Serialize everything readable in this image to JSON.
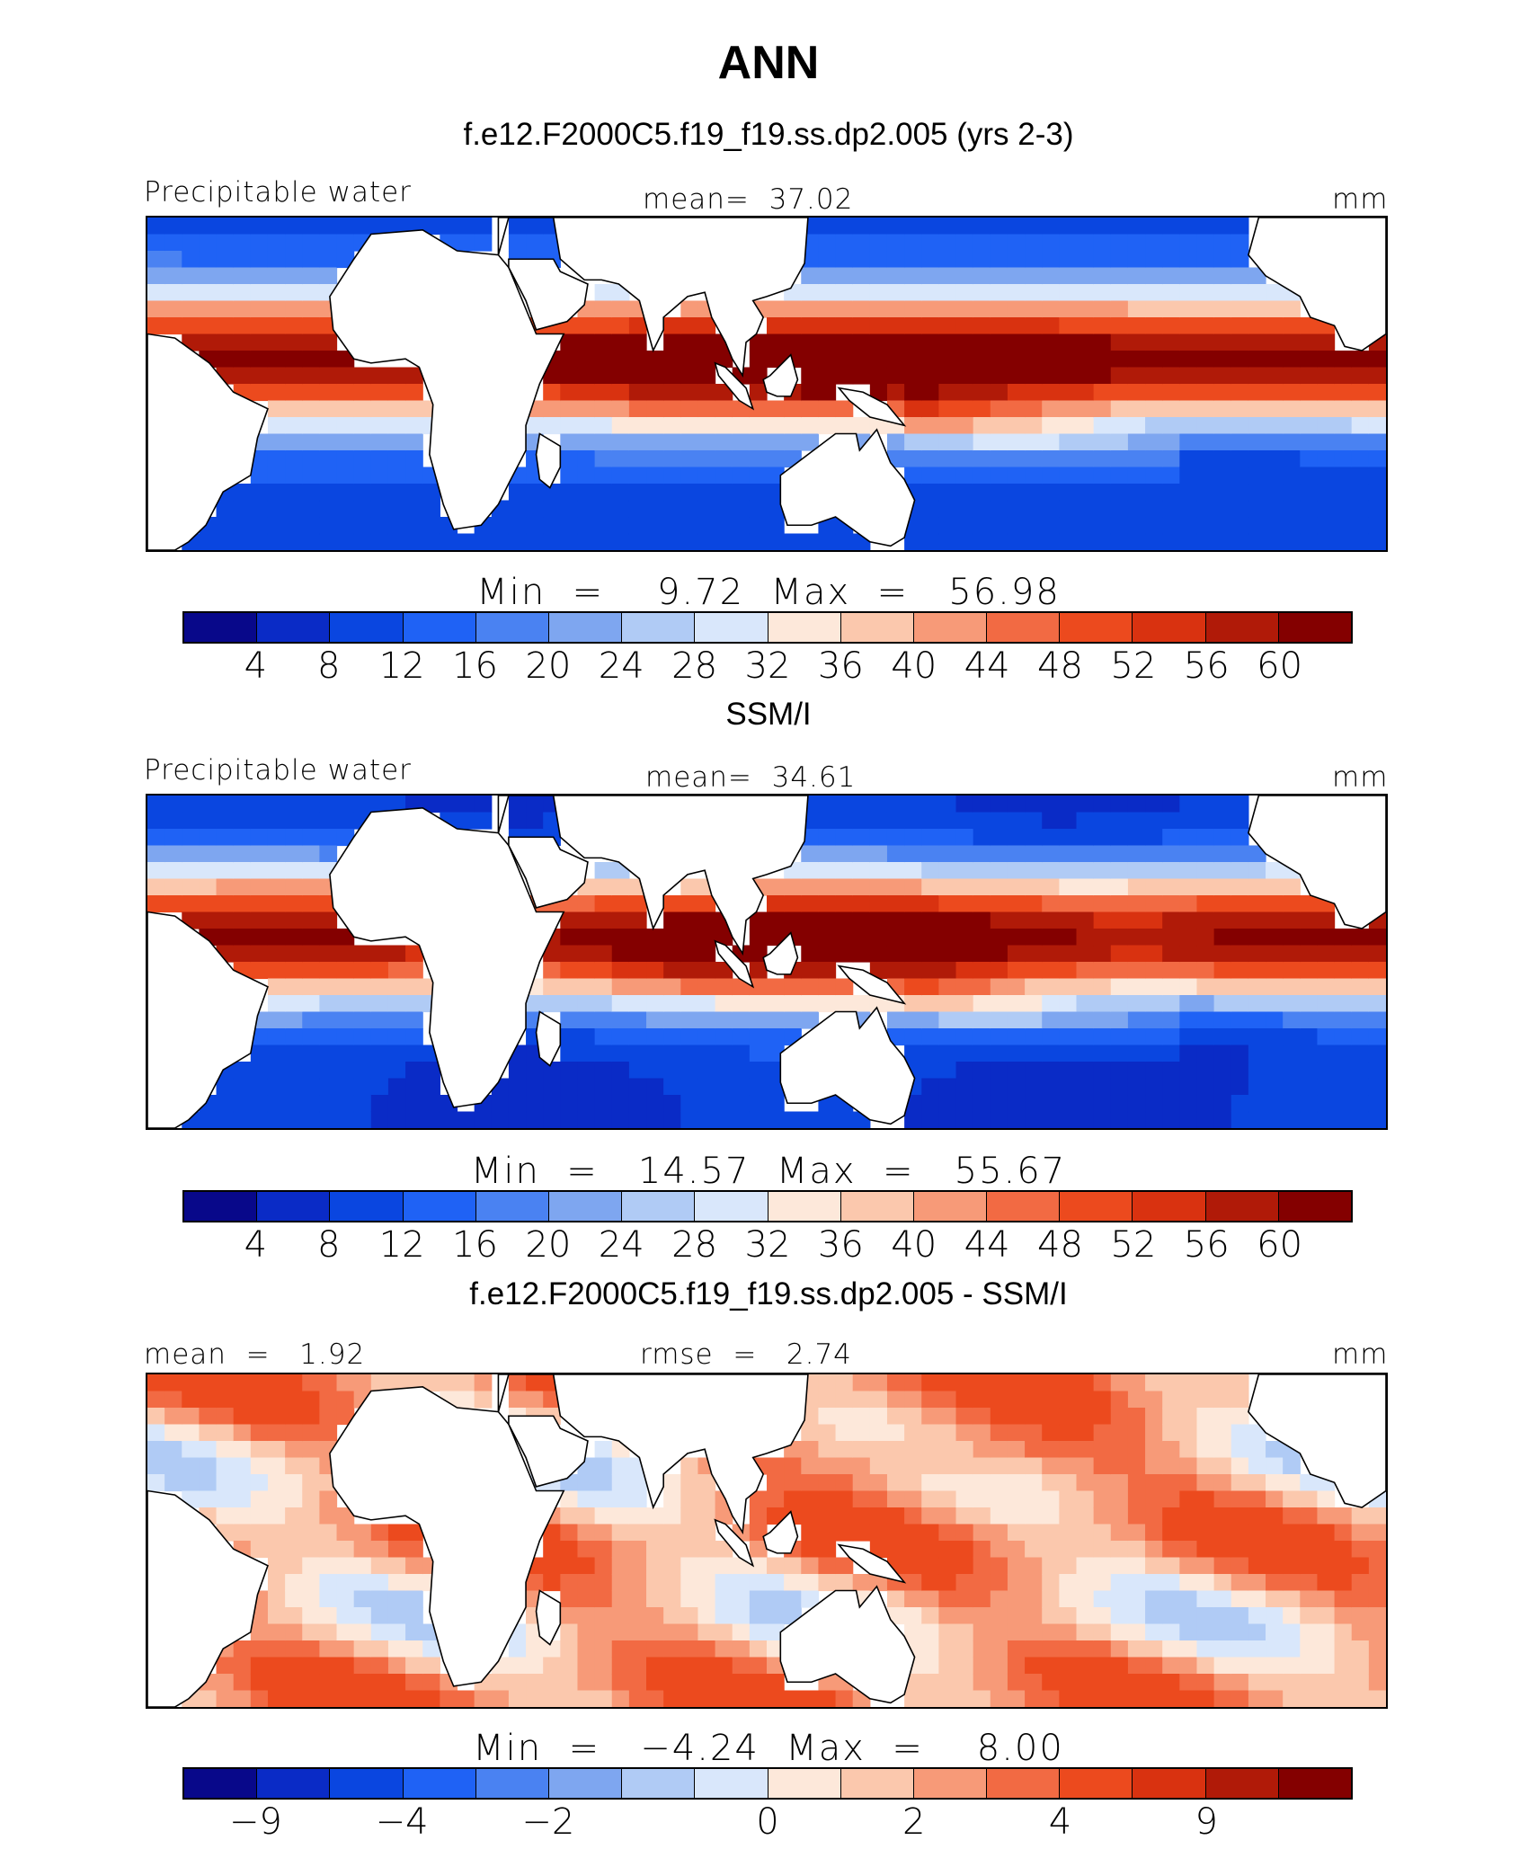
{
  "title": "ANN",
  "palette": [
    "#08088a",
    "#0a2bc6",
    "#0a46e0",
    "#1f62f5",
    "#4a82f2",
    "#7ea6f0",
    "#b0cbf5",
    "#d9e7fb",
    "#fde8da",
    "#fbc8ad",
    "#f79a78",
    "#f26a43",
    "#ec4a1e",
    "#d93210",
    "#b01a08",
    "#840000"
  ],
  "panels": [
    {
      "title": "f.e12.F2000C5.f19_f19.ss.dp2.005 (yrs 2-3)",
      "left_label": "Precipitable water",
      "center_label": "mean=  37.02",
      "right_label": "mm",
      "stats": "Min  =    9.72  Max  =   56.98",
      "ticks": [
        "4",
        "8",
        "12",
        "16",
        "20",
        "24",
        "28",
        "32",
        "36",
        "40",
        "44",
        "48",
        "52",
        "56",
        "60"
      ],
      "field": "model"
    },
    {
      "title": "SSM/I",
      "left_label": "Precipitable water",
      "center_label": "mean=  34.61",
      "right_label": "mm",
      "stats": "Min  =   14.57  Max  =   55.67",
      "ticks": [
        "4",
        "8",
        "12",
        "16",
        "20",
        "24",
        "28",
        "32",
        "36",
        "40",
        "44",
        "48",
        "52",
        "56",
        "60"
      ],
      "field": "obs"
    },
    {
      "title": "f.e12.F2000C5.f19_f19.ss.dp2.005 - SSM/I",
      "left_label": "mean  =   1.92",
      "center_label": "rmse  =   2.74",
      "right_label": "mm",
      "stats": "Min  =   −4.24  Max  =    8.00",
      "ticks": [
        "−9",
        "−4",
        "−2",
        "0",
        "2",
        "4",
        "9"
      ],
      "field": "diff"
    }
  ]
}
